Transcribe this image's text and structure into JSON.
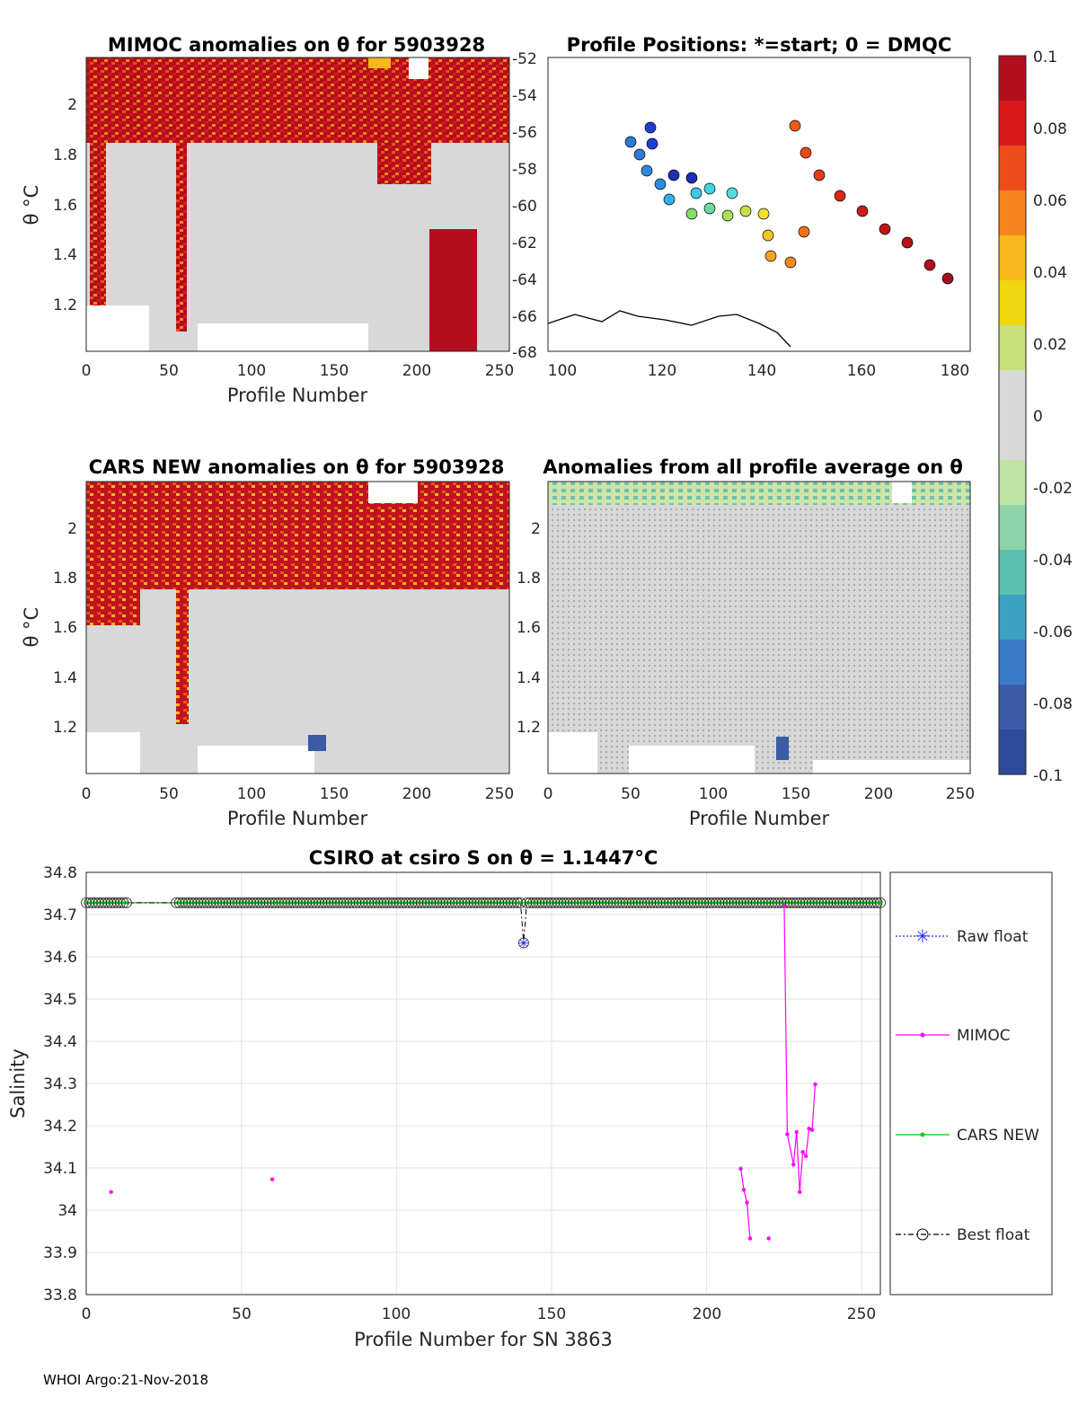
{
  "footer": "WHOI Argo:21-Nov-2018",
  "panels": {
    "mimoc": {
      "title": "MIMOC anomalies on θ  for 5903928",
      "ylabel": "θ °C",
      "xlabel": "Profile Number",
      "xticks": [
        "0",
        "50",
        "100",
        "150",
        "200",
        "250"
      ],
      "yticks": [
        "1.2",
        "1.4",
        "1.6",
        "1.8",
        "2"
      ]
    },
    "positions": {
      "title": "Profile Positions: *=start; 0 = DMQC",
      "xticks": [
        "100",
        "120",
        "140",
        "160",
        "180"
      ],
      "yticks": [
        "-52",
        "-54",
        "-56",
        "-58",
        "-60",
        "-62",
        "-64",
        "-66",
        "-68"
      ]
    },
    "cars": {
      "title": "CARS NEW anomalies on θ for 5903928",
      "ylabel": "θ °C",
      "xlabel": "Profile Number",
      "xticks": [
        "0",
        "50",
        "100",
        "150",
        "200",
        "250"
      ],
      "yticks": [
        "1.2",
        "1.4",
        "1.6",
        "1.8",
        "2"
      ]
    },
    "allavg": {
      "title": "Anomalies from all profile average on θ",
      "xlabel": "Profile Number",
      "xticks": [
        "0",
        "50",
        "100",
        "150",
        "200",
        "250"
      ],
      "yticks": [
        "1.2",
        "1.4",
        "1.6",
        "1.8",
        "2"
      ]
    }
  },
  "colorbar": {
    "ticks": [
      "0.1",
      "0.08",
      "0.06",
      "0.04",
      "0.02",
      "0",
      "-0.02",
      "-0.04",
      "-0.06",
      "-0.08",
      "-0.1"
    ],
    "colors": [
      "#b30e1e",
      "#d7191c",
      "#ef4d1c",
      "#f6851e",
      "#f8b81b",
      "#efd60e",
      "#c8e07a",
      "#d8d8d8",
      "#d8d8d8",
      "#bfe3a0",
      "#8fd4a9",
      "#5cbfb0",
      "#3aa1c0",
      "#3a7bc6",
      "#3b5ba6",
      "#2e4a9a"
    ]
  },
  "chart_data": {
    "type": "line",
    "title": "CSIRO at csiro S on θ = 1.1447°C",
    "xlabel": "Profile Number for SN 3863",
    "ylabel": "Salinity",
    "xlim": [
      0,
      256
    ],
    "ylim": [
      33.8,
      34.8
    ],
    "xticks": [
      "0",
      "50",
      "100",
      "150",
      "200",
      "250"
    ],
    "yticks": [
      "33.8",
      "33.9",
      "34",
      "34.1",
      "34.2",
      "34.3",
      "34.4",
      "34.5",
      "34.6",
      "34.7",
      "34.8"
    ],
    "legend": {
      "position": "right",
      "entries": [
        "Raw float",
        "MIMOC",
        "CARS NEW",
        "Best float"
      ]
    },
    "series": [
      {
        "name": "Best float",
        "color": "#000000",
        "baseline": 34.728,
        "dip": {
          "x": 141,
          "y": 34.633
        },
        "gap": [
          13,
          29
        ]
      },
      {
        "name": "CARS NEW",
        "color": "#00cc00",
        "value": 34.728
      },
      {
        "name": "MIMOC",
        "color": "#ff00ff",
        "points": [
          [
            8,
            34.043
          ],
          [
            60,
            34.073
          ],
          [
            211,
            34.098
          ],
          [
            212,
            34.048
          ],
          [
            213,
            34.018
          ],
          [
            214,
            33.933
          ],
          [
            220,
            33.933
          ],
          [
            225,
            34.72
          ],
          [
            226,
            34.18
          ],
          [
            228,
            34.108
          ],
          [
            229,
            34.185
          ],
          [
            230,
            34.043
          ],
          [
            231,
            34.138
          ],
          [
            232,
            34.128
          ],
          [
            233,
            34.193
          ],
          [
            234,
            34.19
          ],
          [
            235,
            34.298
          ]
        ]
      }
    ]
  }
}
